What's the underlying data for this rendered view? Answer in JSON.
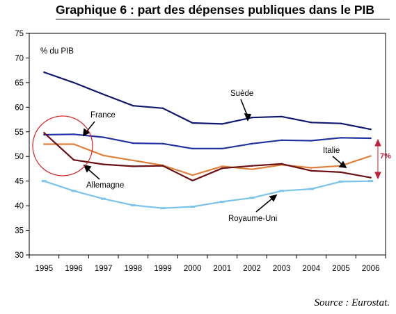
{
  "title": "Graphique 6 : part des dépenses publiques dans le PIB",
  "source": "Source : Eurostat.",
  "chart_data": {
    "type": "line",
    "ylabel": "% du PIB",
    "ylim": [
      30,
      75
    ],
    "yticks": [
      30,
      35,
      40,
      45,
      50,
      55,
      60,
      65,
      70,
      75
    ],
    "x": [
      "1995",
      "1996",
      "1997",
      "1998",
      "1999",
      "2000",
      "2001",
      "2002",
      "2003",
      "2004",
      "2005",
      "2006"
    ],
    "grid": false,
    "series": [
      {
        "name": "Suède",
        "color": "#10186e",
        "markers": false,
        "values": [
          67.1,
          65.0,
          62.6,
          60.3,
          59.8,
          56.8,
          56.6,
          57.9,
          58.1,
          56.9,
          56.7,
          55.5
        ]
      },
      {
        "name": "France",
        "color": "#2233a0",
        "markers": false,
        "values": [
          54.4,
          54.5,
          53.9,
          52.7,
          52.6,
          51.6,
          51.6,
          52.6,
          53.3,
          53.2,
          53.8,
          53.7
        ]
      },
      {
        "name": "Italie",
        "color": "#e07f3a",
        "markers": false,
        "values": [
          52.5,
          52.5,
          50.2,
          49.2,
          48.2,
          46.2,
          48.0,
          47.4,
          48.3,
          47.7,
          48.1,
          50.1
        ]
      },
      {
        "name": "Allemagne",
        "color": "#6a0f14",
        "markers": false,
        "values": [
          54.8,
          49.3,
          48.4,
          48.0,
          48.1,
          45.1,
          47.6,
          48.1,
          48.5,
          47.1,
          46.8,
          45.7
        ]
      },
      {
        "name": "Royaume-Uni",
        "color": "#7bc3ea",
        "markers": true,
        "values": [
          45.0,
          43.0,
          41.4,
          40.1,
          39.5,
          39.8,
          40.8,
          41.6,
          43.0,
          43.4,
          44.9,
          45.0
        ]
      }
    ],
    "annotations": {
      "bracket_label": "7%"
    }
  }
}
